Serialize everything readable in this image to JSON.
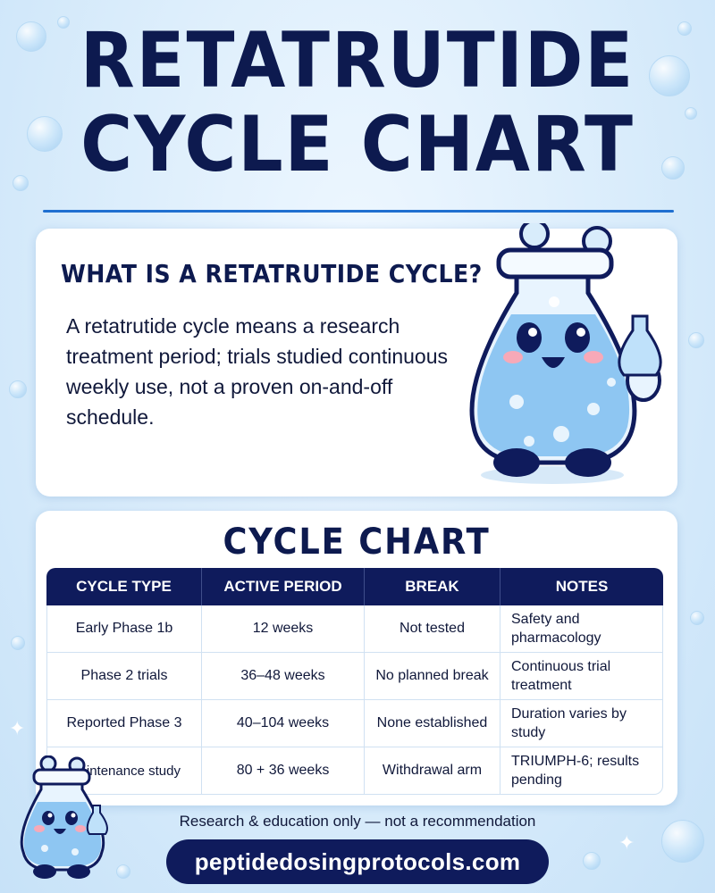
{
  "header": {
    "title_line1": "RETATRUTIDE",
    "title_line2": "CYCLE CHART"
  },
  "intro": {
    "heading": "WHAT IS A RETATRUTIDE CYCLE?",
    "body": "A retatrutide cycle means a research treatment period; trials studied continuous weekly use, not a proven on-and-off schedule."
  },
  "chart": {
    "heading": "CYCLE CHART",
    "columns": [
      "CYCLE TYPE",
      "ACTIVE PERIOD",
      "BREAK",
      "NOTES"
    ],
    "rows": [
      {
        "cycle_type": "Early Phase 1b",
        "active_period": "12 weeks",
        "break": "Not tested",
        "notes": "Safety and pharmacology"
      },
      {
        "cycle_type": "Phase 2 trials",
        "active_period": "36–48 weeks",
        "break": "No planned break",
        "notes": "Continuous trial treatment"
      },
      {
        "cycle_type": "Reported Phase 3",
        "active_period": "40–104 weeks",
        "break": "None established",
        "notes": "Duration varies by study"
      },
      {
        "cycle_type": "Maintenance study",
        "active_period": "80 + 36 weeks",
        "break": "Withdrawal arm",
        "notes": "TRIUMPH-6; results pending"
      }
    ]
  },
  "footer": {
    "disclaimer": "Research & education only — not a recommendation",
    "url": "peptidedosingprotocols.com"
  },
  "colors": {
    "navy": "#0f1b5c",
    "accent_blue": "#1f6fd0",
    "background": "#d9ecfb"
  },
  "icons": {
    "mascot_large": "flask-mascot-icon",
    "mascot_small": "flask-mascot-icon",
    "decor": "bubble-icon"
  }
}
